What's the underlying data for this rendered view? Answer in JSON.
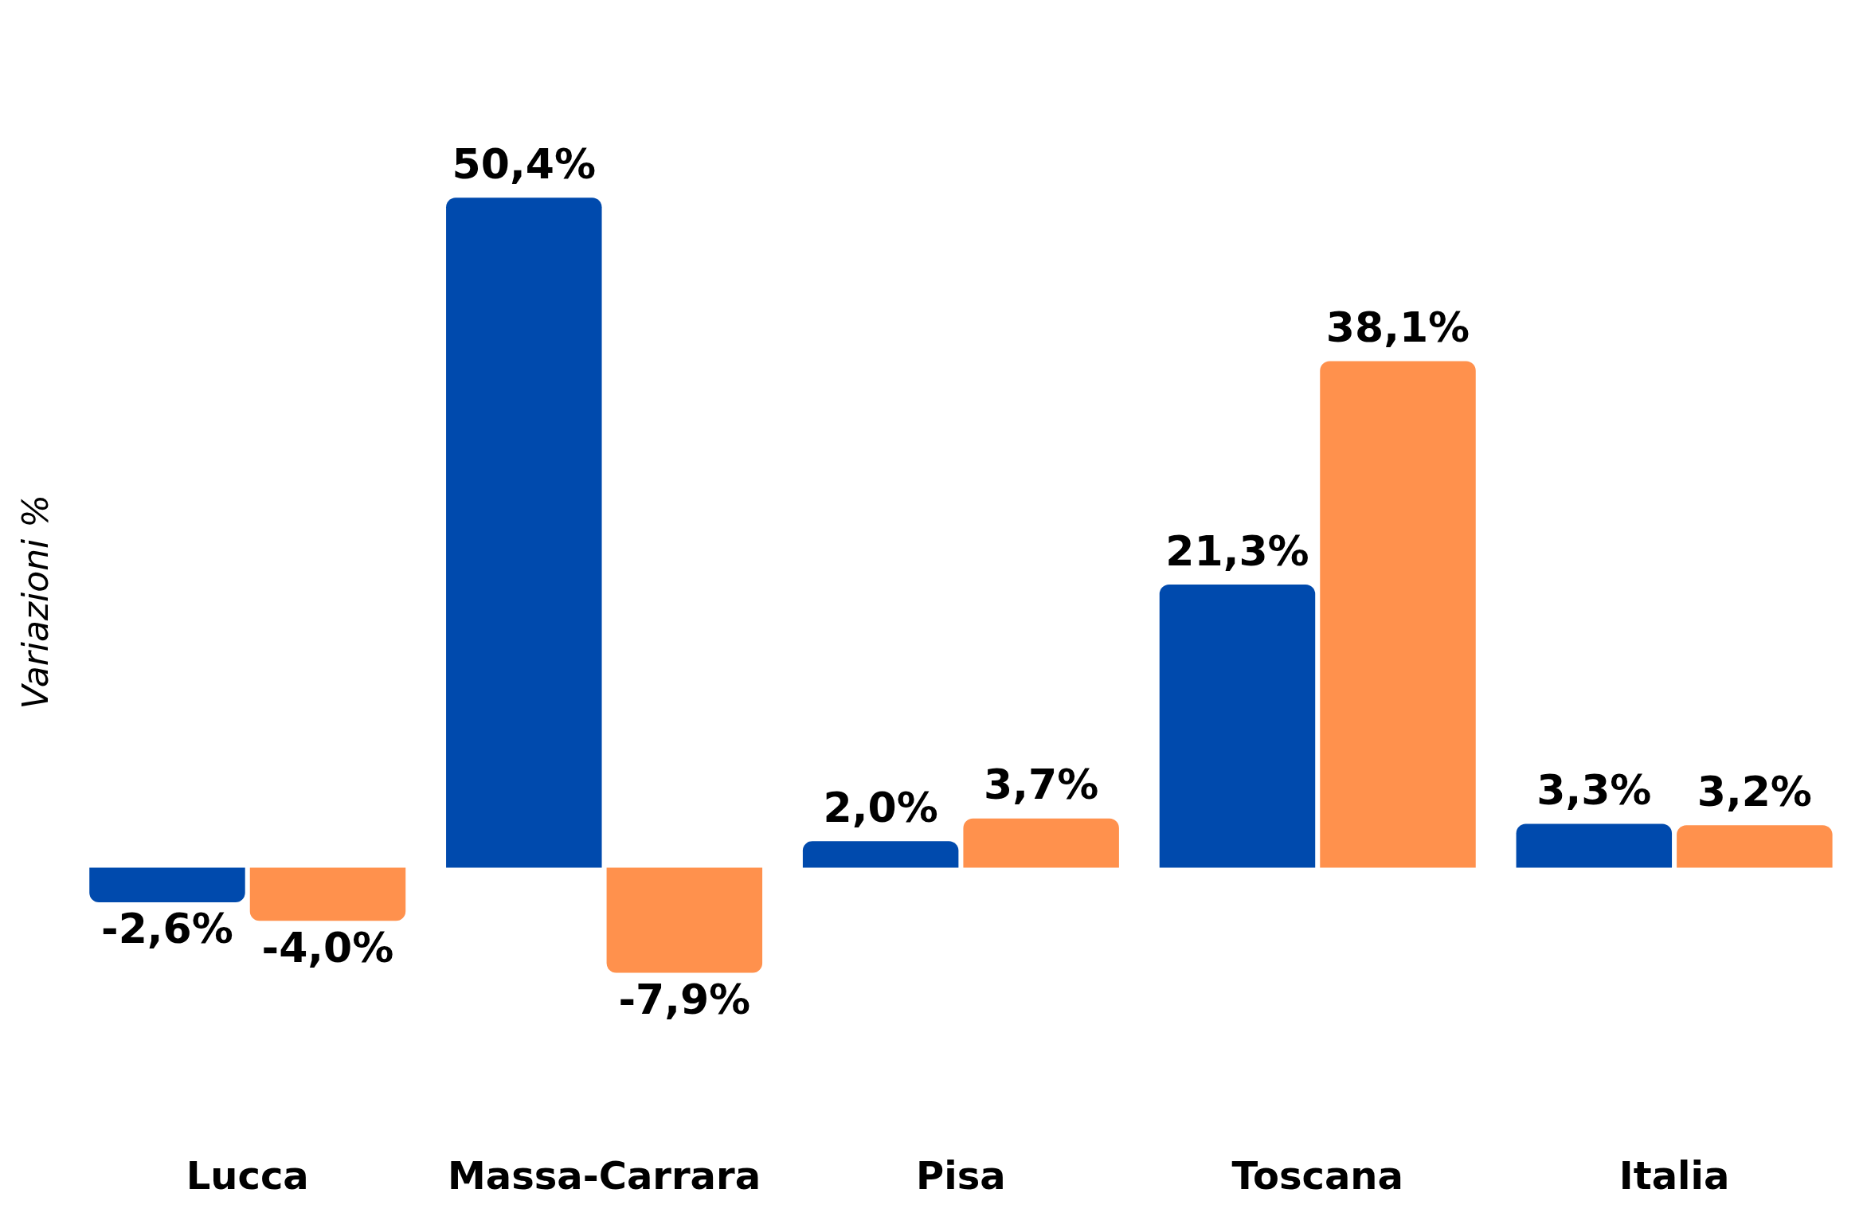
{
  "chart_data": {
    "type": "bar",
    "ylabel": "Variazioni %",
    "categories": [
      "Lucca",
      "Massa-Carrara",
      "Pisa",
      "Toscana",
      "Italia"
    ],
    "series": [
      {
        "color": "#004aad",
        "values": [
          -2.6,
          50.4,
          2.0,
          21.3,
          3.3
        ],
        "value_labels": [
          "-2,6%",
          "50,4%",
          "2,0%",
          "21,3%",
          "3,3%"
        ]
      },
      {
        "color": "#ff914d",
        "values": [
          -4.0,
          -7.9,
          3.7,
          38.1,
          3.2
        ],
        "value_labels": [
          "-4,0%",
          "-7,9%",
          "3,7%",
          "38,1%",
          "3,2%"
        ]
      }
    ],
    "grid": false,
    "legend": false,
    "tick_labels": "x"
  }
}
